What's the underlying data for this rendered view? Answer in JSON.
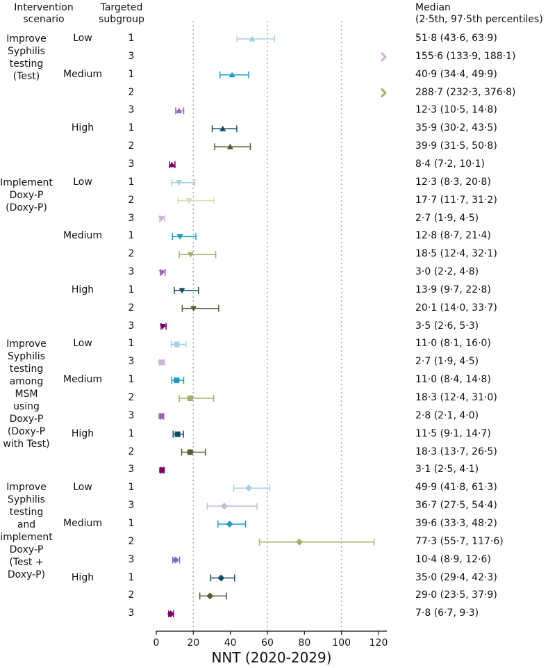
{
  "headers": {
    "scenario": "Intervention\nscenario",
    "subgroup": "Targeted\nsubgroup",
    "median": "Median\n(2·5th, 97·5th percentiles)"
  },
  "scenarios": [
    {
      "label": "Improve\nSyphilis\ntesting\n(Test)"
    },
    {
      "label": "Implement\nDoxy-P\n(Doxy-P)"
    },
    {
      "label": "Improve\nSyphilis\ntesting\namong\nMSM\nusing\nDoxy-P\n(Doxy-P\nwith Test)"
    },
    {
      "label": "Improve\nSyphilis\ntesting\nand\nimplement\nDoxy-P\n(Test +\nDoxy-P)"
    }
  ],
  "chart_data": {
    "type": "forest",
    "xlabel": "NNT (2020-2029)",
    "xlim": [
      0,
      125
    ],
    "xticks": [
      0,
      20,
      40,
      60,
      80,
      100,
      120
    ],
    "gridlines_x": [
      20,
      60,
      100
    ],
    "colors": {
      "Low": "#a6cfe8",
      "Low3": "#cdb4db",
      "Medium": "#1a9bc1",
      "Medium2": "#9db467",
      "Medium3": "#9466b4",
      "High": "#0b4d66",
      "High2": "#505f2c",
      "High3": "#7a0062",
      "Low2": "#d6e0b4"
    },
    "rows": [
      {
        "scenario": 0,
        "level": "Low",
        "subgroup": "1",
        "median": 51.8,
        "lo": 43.6,
        "hi": 63.9,
        "text": "51·8 (43·6, 63·9)",
        "marker": "triangle-up",
        "color": "#a6cfe8"
      },
      {
        "scenario": 0,
        "level": "",
        "subgroup": "3",
        "median": 155.6,
        "lo": 133.9,
        "hi": 188.1,
        "text": "155·6 (133·9, 188·1)",
        "marker": "offscale",
        "color": "#cdb4db"
      },
      {
        "scenario": 0,
        "level": "Medium",
        "subgroup": "1",
        "median": 40.9,
        "lo": 34.4,
        "hi": 49.9,
        "text": "40·9 (34·4, 49·9)",
        "marker": "triangle-up",
        "color": "#1a9bc1"
      },
      {
        "scenario": 0,
        "level": "",
        "subgroup": "2",
        "median": 288.7,
        "lo": 232.3,
        "hi": 376.8,
        "text": "288·7 (232·3, 376·8)",
        "marker": "offscale",
        "color": "#9db467"
      },
      {
        "scenario": 0,
        "level": "",
        "subgroup": "3",
        "median": 12.3,
        "lo": 10.5,
        "hi": 14.8,
        "text": "12·3 (10·5, 14·8)",
        "marker": "triangle-up",
        "color": "#9466b4"
      },
      {
        "scenario": 0,
        "level": "High",
        "subgroup": "1",
        "median": 35.9,
        "lo": 30.2,
        "hi": 43.5,
        "text": "35·9 (30·2, 43·5)",
        "marker": "triangle-up",
        "color": "#0b4d66"
      },
      {
        "scenario": 0,
        "level": "",
        "subgroup": "2",
        "median": 39.9,
        "lo": 31.5,
        "hi": 50.8,
        "text": "39·9 (31·5, 50·8)",
        "marker": "triangle-up",
        "color": "#505f2c"
      },
      {
        "scenario": 0,
        "level": "",
        "subgroup": "3",
        "median": 8.4,
        "lo": 7.2,
        "hi": 10.1,
        "text": "8·4 (7·2, 10·1)",
        "marker": "triangle-up",
        "color": "#7a0062"
      },
      {
        "scenario": 1,
        "level": "Low",
        "subgroup": "1",
        "median": 12.3,
        "lo": 8.3,
        "hi": 20.8,
        "text": "12·3 (8·3, 20·8)",
        "marker": "triangle-down",
        "color": "#a6cfe8"
      },
      {
        "scenario": 1,
        "level": "",
        "subgroup": "2",
        "median": 17.7,
        "lo": 11.7,
        "hi": 31.2,
        "text": "17·7 (11·7, 31·2)",
        "marker": "triangle-down",
        "color": "#d6e0b4"
      },
      {
        "scenario": 1,
        "level": "",
        "subgroup": "3",
        "median": 2.7,
        "lo": 1.9,
        "hi": 4.5,
        "text": "2·7 (1·9, 4·5)",
        "marker": "triangle-down",
        "color": "#cdb4db"
      },
      {
        "scenario": 1,
        "level": "Medium",
        "subgroup": "1",
        "median": 12.8,
        "lo": 8.7,
        "hi": 21.4,
        "text": "12·8 (8·7, 21·4)",
        "marker": "triangle-down",
        "color": "#1a9bc1"
      },
      {
        "scenario": 1,
        "level": "",
        "subgroup": "2",
        "median": 18.5,
        "lo": 12.4,
        "hi": 32.1,
        "text": "18·5 (12·4, 32·1)",
        "marker": "triangle-down",
        "color": "#9db467"
      },
      {
        "scenario": 1,
        "level": "",
        "subgroup": "3",
        "median": 3.0,
        "lo": 2.2,
        "hi": 4.8,
        "text": "3·0 (2·2, 4·8)",
        "marker": "triangle-down",
        "color": "#9466b4"
      },
      {
        "scenario": 1,
        "level": "High",
        "subgroup": "1",
        "median": 13.9,
        "lo": 9.7,
        "hi": 22.8,
        "text": "13·9 (9·7, 22·8)",
        "marker": "triangle-down",
        "color": "#0b4d66"
      },
      {
        "scenario": 1,
        "level": "",
        "subgroup": "2",
        "median": 20.1,
        "lo": 14.0,
        "hi": 33.7,
        "text": "20·1 (14·0, 33·7)",
        "marker": "triangle-down",
        "color": "#505f2c"
      },
      {
        "scenario": 1,
        "level": "",
        "subgroup": "3",
        "median": 3.5,
        "lo": 2.6,
        "hi": 5.3,
        "text": "3·5 (2·6, 5·3)",
        "marker": "triangle-down",
        "color": "#7a0062"
      },
      {
        "scenario": 2,
        "level": "Low",
        "subgroup": "1",
        "median": 11.0,
        "lo": 8.1,
        "hi": 16.0,
        "text": "11·0 (8·1, 16·0)",
        "marker": "square",
        "color": "#a6cfe8"
      },
      {
        "scenario": 2,
        "level": "",
        "subgroup": "3",
        "median": 2.7,
        "lo": 1.9,
        "hi": 4.5,
        "text": "2·7 (1·9, 4·5)",
        "marker": "square",
        "color": "#cdb4db"
      },
      {
        "scenario": 2,
        "level": "Medium",
        "subgroup": "1",
        "median": 11.0,
        "lo": 8.4,
        "hi": 14.8,
        "text": "11·0 (8·4, 14·8)",
        "marker": "square",
        "color": "#1a9bc1"
      },
      {
        "scenario": 2,
        "level": "",
        "subgroup": "2",
        "median": 18.3,
        "lo": 12.4,
        "hi": 31.0,
        "text": "18·3 (12·4, 31·0)",
        "marker": "square",
        "color": "#9db467"
      },
      {
        "scenario": 2,
        "level": "",
        "subgroup": "3",
        "median": 2.8,
        "lo": 2.1,
        "hi": 4.0,
        "text": "2·8 (2·1, 4·0)",
        "marker": "square",
        "color": "#9466b4"
      },
      {
        "scenario": 2,
        "level": "High",
        "subgroup": "1",
        "median": 11.5,
        "lo": 9.1,
        "hi": 14.7,
        "text": "11·5 (9·1, 14·7)",
        "marker": "square",
        "color": "#0b4d66"
      },
      {
        "scenario": 2,
        "level": "",
        "subgroup": "2",
        "median": 18.3,
        "lo": 13.7,
        "hi": 26.5,
        "text": "18·3 (13·7, 26·5)",
        "marker": "square",
        "color": "#505f2c"
      },
      {
        "scenario": 2,
        "level": "",
        "subgroup": "3",
        "median": 3.1,
        "lo": 2.5,
        "hi": 4.1,
        "text": "3·1 (2·5, 4·1)",
        "marker": "square",
        "color": "#7a0062"
      },
      {
        "scenario": 3,
        "level": "Low",
        "subgroup": "1",
        "median": 49.9,
        "lo": 41.8,
        "hi": 61.3,
        "text": "49·9 (41·8, 61·3)",
        "marker": "diamond",
        "color": "#a6cfe8"
      },
      {
        "scenario": 3,
        "level": "",
        "subgroup": "3",
        "median": 36.7,
        "lo": 27.5,
        "hi": 54.4,
        "text": "36·7 (27·5, 54·4)",
        "marker": "diamond",
        "color": "#cdb4db"
      },
      {
        "scenario": 3,
        "level": "Medium",
        "subgroup": "1",
        "median": 39.6,
        "lo": 33.3,
        "hi": 48.2,
        "text": "39·6 (33·3, 48·2)",
        "marker": "diamond",
        "color": "#1a9bc1"
      },
      {
        "scenario": 3,
        "level": "",
        "subgroup": "2",
        "median": 77.3,
        "lo": 55.7,
        "hi": 117.6,
        "text": "77·3 (55·7, 117·6)",
        "marker": "diamond",
        "color": "#9db467"
      },
      {
        "scenario": 3,
        "level": "",
        "subgroup": "3",
        "median": 10.4,
        "lo": 8.9,
        "hi": 12.6,
        "text": "10·4 (8·9, 12·6)",
        "marker": "diamond",
        "color": "#9466b4"
      },
      {
        "scenario": 3,
        "level": "High",
        "subgroup": "1",
        "median": 35.0,
        "lo": 29.4,
        "hi": 42.3,
        "text": "35·0 (29·4, 42·3)",
        "marker": "diamond",
        "color": "#0b4d66"
      },
      {
        "scenario": 3,
        "level": "",
        "subgroup": "2",
        "median": 29.0,
        "lo": 23.5,
        "hi": 37.9,
        "text": "29·0 (23·5, 37·9)",
        "marker": "diamond",
        "color": "#505f2c"
      },
      {
        "scenario": 3,
        "level": "",
        "subgroup": "3",
        "median": 7.8,
        "lo": 6.7,
        "hi": 9.3,
        "text": "7·8 (6·7, 9·3)",
        "marker": "diamond",
        "color": "#7a0062"
      }
    ]
  }
}
